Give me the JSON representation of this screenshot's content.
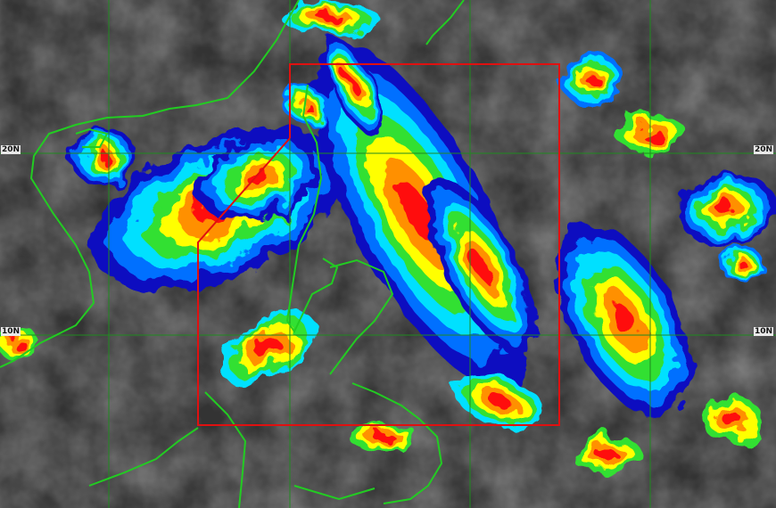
{
  "map": {
    "latitude_labels": {
      "north_20": "20N",
      "north_10": "10N"
    },
    "colors": {
      "background": "#3a3a3a",
      "coastline": "#22cc22",
      "gridline": "#1f8a1f",
      "focus_box": "#e01010",
      "cloud_scale": [
        "#1010c0",
        "#0070ff",
        "#00e0ff",
        "#30e030",
        "#ffff00",
        "#ff9000",
        "#ff1010"
      ]
    }
  }
}
